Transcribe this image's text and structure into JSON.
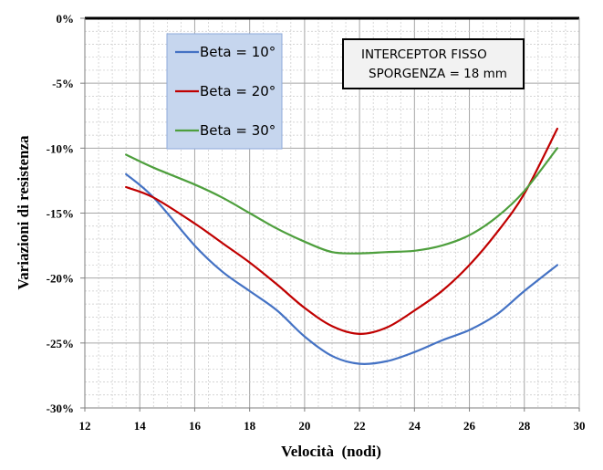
{
  "chart_data": {
    "type": "line",
    "xlabel": "Velocità  (nodi)",
    "ylabel": "Variazioni di resistenza",
    "xlim": [
      12,
      30
    ],
    "ylim": [
      -30,
      0
    ],
    "x_ticks": [
      12,
      14,
      16,
      18,
      20,
      22,
      24,
      26,
      28,
      30
    ],
    "y_ticks": [
      {
        "value": 0,
        "label": "0%"
      },
      {
        "value": -5,
        "label": "-5%"
      },
      {
        "value": -10,
        "label": "-10%"
      },
      {
        "value": -15,
        "label": "-15%"
      },
      {
        "value": -20,
        "label": "-20%"
      },
      {
        "value": -25,
        "label": "-25%"
      },
      {
        "value": -30,
        "label": "-30%"
      }
    ],
    "grid": true,
    "legend_position": "top-left",
    "annotation": {
      "line1": "INTERCEPTOR FISSO",
      "line2": "SPORGENZA = 18 mm"
    },
    "series": [
      {
        "name": "Beta = 10°",
        "color": "#4472c4",
        "points": [
          [
            13.5,
            -12.0
          ],
          [
            14.5,
            -13.8
          ],
          [
            16,
            -17.5
          ],
          [
            17,
            -19.5
          ],
          [
            18,
            -21.0
          ],
          [
            19,
            -22.5
          ],
          [
            20,
            -24.5
          ],
          [
            21,
            -26.0
          ],
          [
            22,
            -26.6
          ],
          [
            23,
            -26.4
          ],
          [
            24,
            -25.7
          ],
          [
            25,
            -24.8
          ],
          [
            26,
            -24.0
          ],
          [
            27,
            -22.8
          ],
          [
            28,
            -21.0
          ],
          [
            29.2,
            -19.0
          ]
        ]
      },
      {
        "name": "Beta = 20°",
        "color": "#c00000",
        "points": [
          [
            13.5,
            -13.0
          ],
          [
            14.5,
            -13.8
          ],
          [
            16,
            -15.8
          ],
          [
            17,
            -17.3
          ],
          [
            18,
            -18.8
          ],
          [
            19,
            -20.5
          ],
          [
            20,
            -22.3
          ],
          [
            21,
            -23.7
          ],
          [
            22,
            -24.3
          ],
          [
            23,
            -23.8
          ],
          [
            24,
            -22.5
          ],
          [
            25,
            -21.0
          ],
          [
            26,
            -19.0
          ],
          [
            27,
            -16.5
          ],
          [
            28,
            -13.5
          ],
          [
            29.2,
            -8.5
          ]
        ]
      },
      {
        "name": "Beta = 30°",
        "color": "#4e9f3d",
        "points": [
          [
            13.5,
            -10.5
          ],
          [
            14.5,
            -11.5
          ],
          [
            16,
            -12.8
          ],
          [
            17,
            -13.8
          ],
          [
            18,
            -15.0
          ],
          [
            19,
            -16.2
          ],
          [
            20,
            -17.2
          ],
          [
            21,
            -18.0
          ],
          [
            22,
            -18.1
          ],
          [
            23,
            -18.0
          ],
          [
            24,
            -17.9
          ],
          [
            25,
            -17.5
          ],
          [
            26,
            -16.7
          ],
          [
            27,
            -15.3
          ],
          [
            28,
            -13.3
          ],
          [
            29.2,
            -10.0
          ]
        ]
      }
    ]
  }
}
